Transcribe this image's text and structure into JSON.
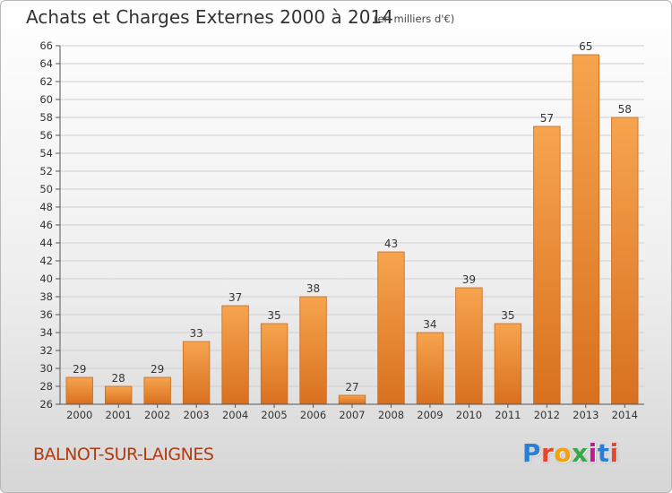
{
  "header": {
    "title": "Achats et Charges Externes 2000 à 2014",
    "subtitle": "(en milliers d'€)"
  },
  "footer": {
    "commune": "BALNOT-SUR-LAIGNES",
    "logo_text": "Proxiti",
    "logo_colors": [
      "#2a7fd4",
      "#e8452c",
      "#f2a20f",
      "#3aa84a",
      "#c1189a",
      "#2a7fd4",
      "#e8452c"
    ]
  },
  "colors": {
    "bar_light": "#f7a44e",
    "bar_dark": "#d8701f",
    "bar_stroke": "#c86a1e",
    "grid": "#cfcfcf",
    "axis_text": "#333333"
  },
  "chart_data": {
    "type": "bar",
    "title": "Achats et Charges Externes 2000 à 2014",
    "subtitle": "(en milliers d'€)",
    "categories": [
      "2000",
      "2001",
      "2002",
      "2003",
      "2004",
      "2005",
      "2006",
      "2007",
      "2008",
      "2009",
      "2010",
      "2011",
      "2012",
      "2013",
      "2014"
    ],
    "values": [
      29,
      28,
      29,
      33,
      37,
      35,
      38,
      27,
      43,
      34,
      39,
      35,
      57,
      65,
      58
    ],
    "ylim": [
      26,
      66
    ],
    "ytick_step": 2,
    "grid": true,
    "legend": false
  }
}
